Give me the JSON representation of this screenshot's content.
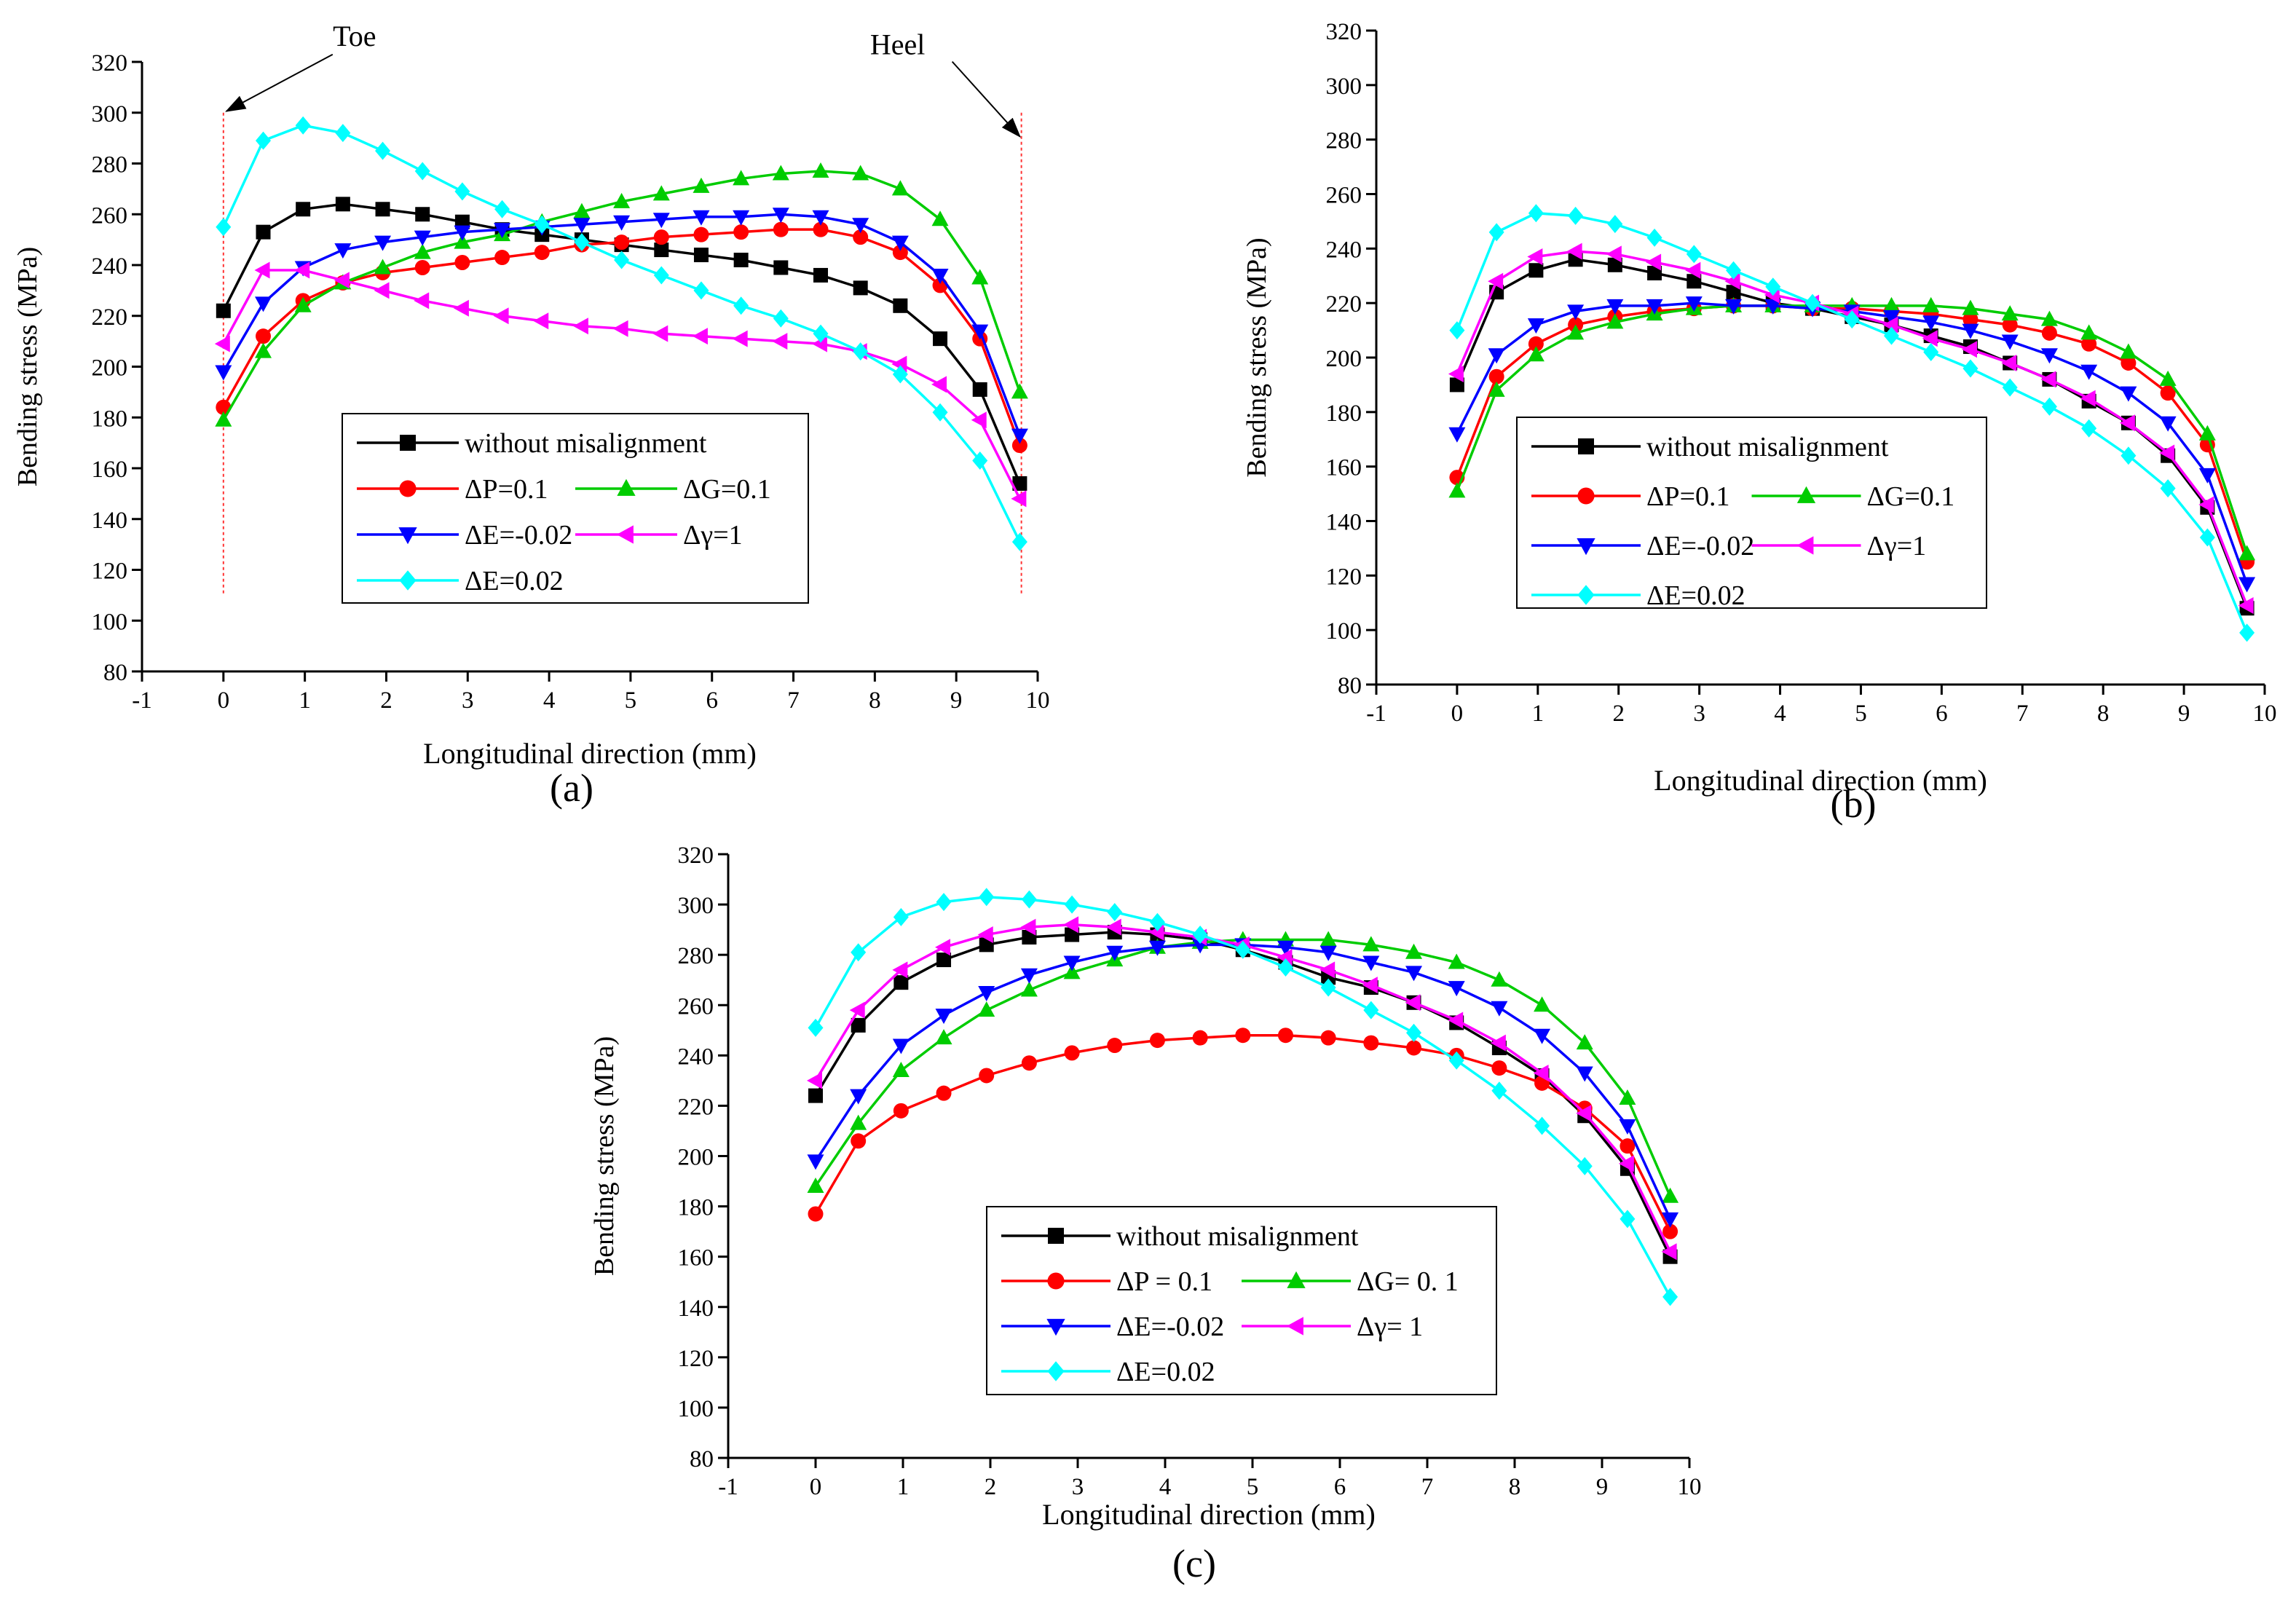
{
  "figure": {
    "panels": [
      {
        "label": "(a)"
      },
      {
        "label": "(b)"
      },
      {
        "label": "(c)"
      }
    ]
  },
  "chart_data": [
    {
      "type": "line",
      "panel_label": "(a)",
      "xlabel": "Longitudinal direction (mm)",
      "ylabel": "Bending stress (MPa)",
      "xlim": [
        -1,
        10
      ],
      "ylim": [
        80,
        320
      ],
      "xticks": [
        -1,
        0,
        1,
        2,
        3,
        4,
        5,
        6,
        7,
        8,
        9,
        10
      ],
      "yticks": [
        80,
        100,
        120,
        140,
        160,
        180,
        200,
        220,
        240,
        260,
        280,
        300,
        320
      ],
      "x": [
        0,
        0.5,
        1,
        1.5,
        2,
        2.5,
        3,
        3.5,
        4,
        4.5,
        5,
        5.5,
        6,
        6.5,
        7,
        7.5,
        8,
        8.5,
        9,
        9.5,
        10
      ],
      "annotations": [
        {
          "text": "Toe",
          "x": 0,
          "arrow_to": [
            0,
            300
          ]
        },
        {
          "text": "Heel",
          "x": 9.8,
          "arrow_to": [
            9.8,
            290
          ]
        }
      ],
      "guide_lines_x": [
        0,
        9.8
      ],
      "series": [
        {
          "name": "without misalignment",
          "color": "#000000",
          "marker": "square",
          "values": [
            222,
            253,
            262,
            264,
            262,
            260,
            257,
            254,
            252,
            250,
            248,
            246,
            244,
            242,
            239,
            236,
            231,
            224,
            211,
            191,
            154
          ]
        },
        {
          "name": "ΔP=0.1",
          "color": "#ff0000",
          "marker": "circle",
          "values": [
            184,
            212,
            226,
            233,
            237,
            239,
            241,
            243,
            245,
            248,
            249,
            251,
            252,
            253,
            254,
            254,
            251,
            245,
            232,
            211,
            169
          ]
        },
        {
          "name": "ΔG=0.1",
          "color": "#00cc00",
          "marker": "triangle-up",
          "values": [
            179,
            206,
            224,
            233,
            239,
            245,
            249,
            252,
            257,
            261,
            265,
            268,
            271,
            274,
            276,
            277,
            276,
            270,
            258,
            235,
            190
          ]
        },
        {
          "name": "ΔE=-0.02",
          "color": "#0000ff",
          "marker": "triangle-down",
          "values": [
            198,
            225,
            239,
            246,
            249,
            251,
            253,
            254,
            255,
            256,
            257,
            258,
            259,
            259,
            260,
            259,
            256,
            249,
            236,
            214,
            173
          ]
        },
        {
          "name": "Δγ=1",
          "color": "#ff00ff",
          "marker": "triangle-left",
          "values": [
            209,
            238,
            238,
            234,
            230,
            226,
            223,
            220,
            218,
            216,
            215,
            213,
            212,
            211,
            210,
            209,
            206,
            201,
            193,
            179,
            148
          ]
        },
        {
          "name": "ΔE=0.02",
          "color": "#00ffff",
          "marker": "diamond",
          "values": [
            255,
            289,
            295,
            292,
            285,
            277,
            269,
            262,
            256,
            249,
            242,
            236,
            230,
            224,
            219,
            213,
            206,
            197,
            182,
            163,
            131
          ]
        }
      ]
    },
    {
      "type": "line",
      "panel_label": "(b)",
      "xlabel": "Longitudinal direction (mm)",
      "ylabel": "Bending stress (MPa)",
      "xlim": [
        -1,
        10
      ],
      "ylim": [
        80,
        320
      ],
      "xticks": [
        -1,
        0,
        1,
        2,
        3,
        4,
        5,
        6,
        7,
        8,
        9,
        10
      ],
      "yticks": [
        80,
        100,
        120,
        140,
        160,
        180,
        200,
        220,
        240,
        260,
        280,
        300,
        320
      ],
      "x": [
        0,
        0.5,
        1,
        1.5,
        2,
        2.5,
        3,
        3.5,
        4,
        4.5,
        5,
        5.5,
        6,
        6.5,
        7,
        7.5,
        8,
        8.5,
        9,
        9.5,
        10
      ],
      "series": [
        {
          "name": "without misalignment",
          "color": "#000000",
          "marker": "square",
          "values": [
            190,
            224,
            232,
            236,
            234,
            231,
            228,
            224,
            220,
            218,
            215,
            212,
            208,
            204,
            198,
            192,
            184,
            176,
            164,
            145,
            108
          ]
        },
        {
          "name": "ΔP=0.1",
          "color": "#ff0000",
          "marker": "circle",
          "values": [
            156,
            193,
            205,
            212,
            215,
            217,
            218,
            219,
            219,
            218,
            218,
            217,
            216,
            214,
            212,
            209,
            205,
            198,
            187,
            168,
            125
          ]
        },
        {
          "name": "ΔG=0.1",
          "color": "#00cc00",
          "marker": "triangle-up",
          "values": [
            151,
            188,
            201,
            209,
            213,
            216,
            218,
            219,
            219,
            219,
            219,
            219,
            219,
            218,
            216,
            214,
            209,
            202,
            192,
            172,
            128
          ]
        },
        {
          "name": "ΔE=-0.02",
          "color": "#0000ff",
          "marker": "triangle-down",
          "values": [
            172,
            201,
            212,
            217,
            219,
            219,
            220,
            219,
            219,
            218,
            217,
            215,
            213,
            210,
            206,
            201,
            195,
            187,
            176,
            157,
            117
          ]
        },
        {
          "name": "Δγ=1",
          "color": "#ff00ff",
          "marker": "triangle-left",
          "values": [
            194,
            228,
            237,
            239,
            238,
            235,
            232,
            228,
            223,
            220,
            216,
            212,
            207,
            203,
            198,
            192,
            185,
            176,
            165,
            146,
            109
          ]
        },
        {
          "name": "ΔE=0.02",
          "color": "#00ffff",
          "marker": "diamond",
          "values": [
            210,
            246,
            253,
            252,
            249,
            244,
            238,
            232,
            226,
            220,
            214,
            208,
            202,
            196,
            189,
            182,
            174,
            164,
            152,
            134,
            99
          ]
        }
      ]
    },
    {
      "type": "line",
      "panel_label": "(c)",
      "xlabel": "Longitudinal direction (mm)",
      "ylabel": "Bending stress (MPa)",
      "xlim": [
        -1,
        10
      ],
      "ylim": [
        80,
        320
      ],
      "xticks": [
        -1,
        0,
        1,
        2,
        3,
        4,
        5,
        6,
        7,
        8,
        9,
        10
      ],
      "yticks": [
        80,
        100,
        120,
        140,
        160,
        180,
        200,
        220,
        240,
        260,
        280,
        300,
        320
      ],
      "x": [
        0,
        0.5,
        1,
        1.5,
        2,
        2.5,
        3,
        3.5,
        4,
        4.5,
        5,
        5.5,
        6,
        6.5,
        7,
        7.5,
        8,
        8.5,
        9,
        9.5,
        10
      ],
      "series": [
        {
          "name": "without misalignment",
          "color": "#000000",
          "marker": "square",
          "values": [
            224,
            252,
            269,
            278,
            284,
            287,
            288,
            289,
            288,
            286,
            282,
            277,
            271,
            267,
            261,
            253,
            243,
            232,
            216,
            195,
            160
          ]
        },
        {
          "name": "ΔP = 0.1",
          "color": "#ff0000",
          "marker": "circle",
          "values": [
            177,
            206,
            218,
            225,
            232,
            237,
            241,
            244,
            246,
            247,
            248,
            248,
            247,
            245,
            243,
            240,
            235,
            229,
            219,
            204,
            170
          ]
        },
        {
          "name": "ΔG= 0. 1",
          "color": "#00cc00",
          "marker": "triangle-up",
          "values": [
            188,
            213,
            234,
            247,
            258,
            266,
            273,
            278,
            283,
            285,
            286,
            286,
            286,
            284,
            281,
            277,
            270,
            260,
            245,
            223,
            184
          ]
        },
        {
          "name": "ΔE=-0.02",
          "color": "#0000ff",
          "marker": "triangle-down",
          "values": [
            198,
            224,
            244,
            256,
            265,
            272,
            277,
            281,
            283,
            284,
            284,
            283,
            281,
            277,
            273,
            267,
            259,
            248,
            233,
            212,
            175
          ]
        },
        {
          "name": "Δγ= 1",
          "color": "#ff00ff",
          "marker": "triangle-left",
          "values": [
            230,
            258,
            274,
            283,
            288,
            291,
            292,
            291,
            289,
            287,
            284,
            279,
            274,
            268,
            261,
            254,
            245,
            233,
            217,
            197,
            162
          ]
        },
        {
          "name": "ΔE=0.02",
          "color": "#00ffff",
          "marker": "diamond",
          "values": [
            251,
            281,
            295,
            301,
            303,
            302,
            300,
            297,
            293,
            288,
            282,
            275,
            267,
            258,
            249,
            238,
            226,
            212,
            196,
            175,
            144
          ]
        }
      ]
    }
  ]
}
